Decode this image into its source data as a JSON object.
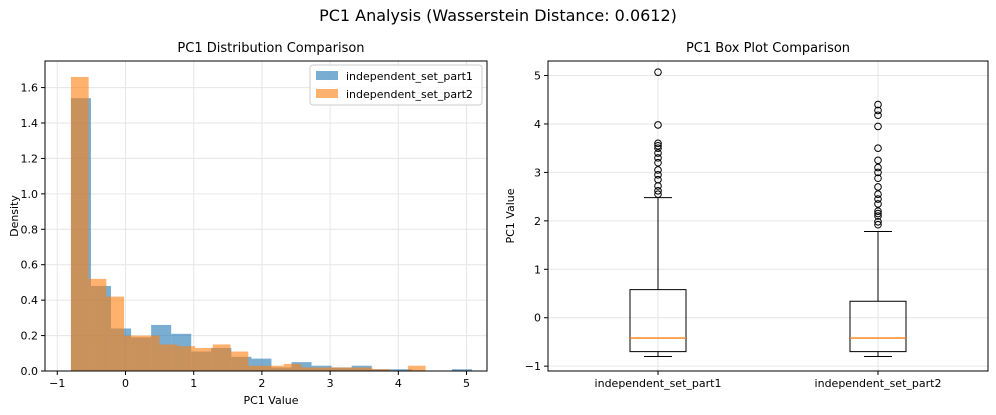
{
  "suptitle": "PC1 Analysis (Wasserstein Distance: 0.0612)",
  "colors": {
    "part1": "#1f77b4",
    "part2": "#ff7f0e",
    "median": "#ff7f0e",
    "grid": "#e6e6e6"
  },
  "chart_data": [
    {
      "type": "histogram",
      "title": "PC1 Distribution Comparison",
      "xlabel": "PC1 Value",
      "ylabel": "Density",
      "xlim": [
        -1.18,
        5.3
      ],
      "ylim": [
        0,
        1.75
      ],
      "xticks": [
        -1,
        0,
        1,
        2,
        3,
        4,
        5
      ],
      "xtick_labels": [
        "−1",
        "0",
        "1",
        "2",
        "3",
        "4",
        "5"
      ],
      "yticks": [
        0.0,
        0.2,
        0.4,
        0.6,
        0.8,
        1.0,
        1.2,
        1.4,
        1.6
      ],
      "ytick_labels": [
        "0.0",
        "0.2",
        "0.4",
        "0.6",
        "0.8",
        "1.0",
        "1.2",
        "1.4",
        "1.6"
      ],
      "grid": true,
      "legend_position": "top-right",
      "series": [
        {
          "name": "independent_set_part1",
          "color": "#1f77b4",
          "alpha": 0.6,
          "bin_edges": [
            -0.8,
            -0.506,
            -0.212,
            0.082,
            0.376,
            0.67,
            0.964,
            1.258,
            1.552,
            1.846,
            2.14,
            2.434,
            2.728,
            3.022,
            3.316,
            3.61,
            3.904,
            4.198,
            4.492,
            4.786,
            5.08
          ],
          "density": [
            1.54,
            0.48,
            0.24,
            0.19,
            0.26,
            0.21,
            0.11,
            0.13,
            0.08,
            0.07,
            0.02,
            0.05,
            0.03,
            0.02,
            0.03,
            0.01,
            0.01,
            0.0,
            0.0,
            0.01
          ]
        },
        {
          "name": "independent_set_part2",
          "color": "#ff7f0e",
          "alpha": 0.6,
          "bin_edges": [
            -0.8,
            -0.54,
            -0.28,
            -0.02,
            0.24,
            0.5,
            0.76,
            1.02,
            1.28,
            1.54,
            1.8,
            2.06,
            2.32,
            2.58,
            2.84,
            3.1,
            3.36,
            3.62,
            3.88,
            4.14,
            4.4
          ],
          "density": [
            1.66,
            0.52,
            0.42,
            0.2,
            0.2,
            0.15,
            0.14,
            0.13,
            0.15,
            0.11,
            0.03,
            0.03,
            0.04,
            0.02,
            0.02,
            0.02,
            0.02,
            0.01,
            0.0,
            0.03
          ]
        }
      ]
    },
    {
      "type": "boxplot",
      "title": "PC1 Box Plot Comparison",
      "xlabel": "",
      "ylabel": "PC1 Value",
      "ylim": [
        -1.1,
        5.3
      ],
      "yticks": [
        -1,
        0,
        1,
        2,
        3,
        4,
        5
      ],
      "ytick_labels": [
        "−1",
        "0",
        "1",
        "2",
        "3",
        "4",
        "5"
      ],
      "grid": true,
      "categories": [
        "independent_set_part1",
        "independent_set_part2"
      ],
      "boxes": [
        {
          "name": "independent_set_part1",
          "whislo": -0.8,
          "q1": -0.7,
          "med": -0.42,
          "q3": 0.58,
          "whishi": 2.48,
          "fliers": [
            5.07,
            3.98,
            3.6,
            3.55,
            3.5,
            3.4,
            3.3,
            3.2,
            3.05,
            2.95,
            2.85,
            2.72,
            2.62,
            2.55
          ]
        },
        {
          "name": "independent_set_part2",
          "whislo": -0.8,
          "q1": -0.7,
          "med": -0.42,
          "q3": 0.34,
          "whishi": 1.78,
          "fliers": [
            4.4,
            4.28,
            4.18,
            3.95,
            3.5,
            3.25,
            3.1,
            3.0,
            2.88,
            2.7,
            2.55,
            2.45,
            2.35,
            2.2,
            2.15,
            2.1,
            1.98,
            1.92
          ]
        }
      ]
    }
  ]
}
